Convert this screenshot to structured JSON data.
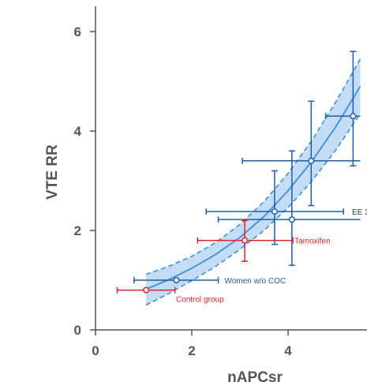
{
  "chart_data": {
    "type": "scatter",
    "xlabel": "nAPCsr",
    "ylabel": "VTE RR",
    "xlim": [
      0,
      5.5
    ],
    "ylim": [
      0,
      6.5
    ],
    "x_ticks": [
      "0",
      "2",
      "4"
    ],
    "y_ticks": [
      "0",
      "2",
      "4",
      "6"
    ],
    "grid": false,
    "colors": {
      "blue": "#1f5fa8",
      "red": "#e8202a",
      "band_fill": "#c4dcf5",
      "fit": "#3e8fd6"
    },
    "points": [
      {
        "label": "Control group",
        "x": 1.05,
        "y": 0.8,
        "x_err": [
          0.45,
          1.65
        ],
        "y_err": [
          0.8,
          0.8
        ],
        "color": "red"
      },
      {
        "label": "Women w/o COC",
        "x": 1.68,
        "y": 1.0,
        "x_err": [
          0.8,
          2.55
        ],
        "y_err": [
          1.0,
          1.0
        ],
        "color": "blue"
      },
      {
        "label": "Tamoxifen",
        "x": 3.1,
        "y": 1.8,
        "x_err": [
          2.12,
          4.1
        ],
        "y_err": [
          1.38,
          2.2
        ],
        "color": "red"
      },
      {
        "label": "",
        "x": 3.72,
        "y": 2.38,
        "x_err": [
          2.3,
          5.15
        ],
        "y_err": [
          1.72,
          3.2
        ],
        "color": "blue"
      },
      {
        "label": "",
        "x": 4.08,
        "y": 2.22,
        "x_err": [
          2.55,
          5.5
        ],
        "y_err": [
          1.3,
          3.6
        ],
        "color": "blue"
      },
      {
        "label": "",
        "x": 4.48,
        "y": 3.4,
        "x_err": [
          3.05,
          5.5
        ],
        "y_err": [
          2.5,
          4.6
        ],
        "color": "blue"
      },
      {
        "label": "",
        "x": 5.35,
        "y": 4.3,
        "x_err": [
          4.78,
          5.5
        ],
        "y_err": [
          3.3,
          5.6
        ],
        "color": "blue"
      }
    ],
    "cut_label": "EE 3",
    "fit": {
      "x": [
        1.05,
        1.5,
        2.0,
        2.5,
        3.0,
        3.5,
        4.0,
        4.5,
        5.0,
        5.5
      ],
      "y": [
        0.82,
        1.0,
        1.24,
        1.52,
        1.86,
        2.28,
        2.8,
        3.4,
        4.1,
        4.9
      ],
      "upper": [
        1.12,
        1.27,
        1.48,
        1.76,
        2.12,
        2.58,
        3.15,
        3.82,
        4.6,
        5.45
      ],
      "lower": [
        0.5,
        0.72,
        0.99,
        1.28,
        1.62,
        2.0,
        2.46,
        3.0,
        3.63,
        4.35
      ]
    }
  }
}
